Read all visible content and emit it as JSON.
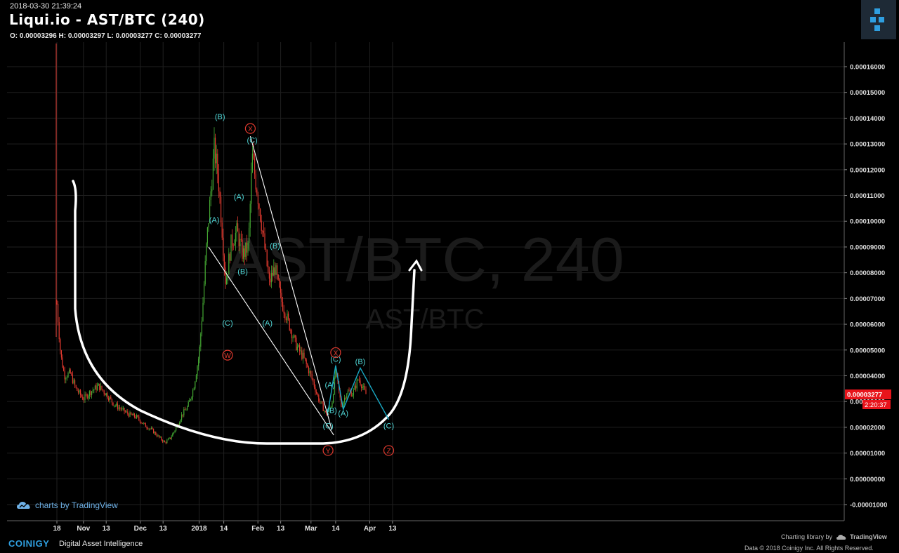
{
  "header": {
    "datetime": "2018-03-30 21:39:24",
    "title": "Liqui.io - AST/BTC (240)",
    "ohlc": "O: 0.00003296 H: 0.00003297 L: 0.00003277 C: 0.00003277"
  },
  "watermark": {
    "main": "AST/BTC, 240",
    "sub": "AST/BTC"
  },
  "footer": {
    "tv_badge": "charts by TradingView",
    "brand": "COINIGY",
    "tagline": "Digital Asset Intelligence",
    "charting_credit": "Charting library by",
    "tv_name": "TradingView",
    "data_credit": "Data © 2018 Coinigy Inc. All Rights Reserved."
  },
  "colors": {
    "up": "#44a832",
    "down": "#e23a2f",
    "wave_label": "#4fd6d6",
    "wave_circle": "#e23a2f",
    "annotation_line": "#ffffff",
    "projection": "#19a9c4",
    "price_tag": "#e8141b"
  },
  "chart_data": {
    "type": "line",
    "title": "Liqui.io - AST/BTC (240)",
    "xlabel": "",
    "ylabel": "",
    "x_ticks": [
      "18",
      "Nov",
      "13",
      "Dec",
      "13",
      "2018",
      "14",
      "Feb",
      "13",
      "Mar",
      "14",
      "Apr",
      "13"
    ],
    "y_ticks": [
      "0.00016000",
      "0.00015000",
      "0.00014000",
      "0.00013000",
      "0.00012000",
      "0.00011000",
      "0.00010000",
      "0.00009000",
      "0.00008000",
      "0.00007000",
      "0.00006000",
      "0.00005000",
      "0.00004000",
      "0.00003000",
      "0.00002000",
      "0.00001000",
      "0.00000000",
      "-0.00001000"
    ],
    "ylim": [
      -1.3e-05,
      0.000168
    ],
    "grid": true,
    "last_price": "0.00003277",
    "countdown": "2:20:37",
    "series": [
      {
        "values": [
          [
            "2017-10-18",
            6.8e-05
          ],
          [
            "2017-10-20",
            4.8e-05
          ],
          [
            "2017-10-22",
            4e-05
          ],
          [
            "2017-10-25",
            4.1e-05
          ],
          [
            "2017-10-28",
            3.5e-05
          ],
          [
            "2017-11-01",
            3.1e-05
          ],
          [
            "2017-11-05",
            3.4e-05
          ],
          [
            "2017-11-09",
            3.6e-05
          ],
          [
            "2017-11-13",
            3.3e-05
          ],
          [
            "2017-11-17",
            2.9e-05
          ],
          [
            "2017-11-21",
            2.7e-05
          ],
          [
            "2017-11-25",
            2.5e-05
          ],
          [
            "2017-11-29",
            2.4e-05
          ],
          [
            "2017-12-03",
            2.1e-05
          ],
          [
            "2017-12-07",
            1.9e-05
          ],
          [
            "2017-12-11",
            1.6e-05
          ],
          [
            "2017-12-14",
            1.4e-05
          ],
          [
            "2017-12-17",
            1.6e-05
          ],
          [
            "2017-12-20",
            2e-05
          ],
          [
            "2017-12-23",
            2.5e-05
          ],
          [
            "2017-12-26",
            2.8e-05
          ],
          [
            "2017-12-29",
            3.5e-05
          ],
          [
            "2018-01-01",
            4.8e-05
          ],
          [
            "2018-01-03",
            6.8e-05
          ],
          [
            "2018-01-05",
            9.2e-05
          ],
          [
            "2018-01-07",
            0.00011
          ],
          [
            "2018-01-09",
            0.000128
          ],
          [
            "2018-01-11",
            0.000118
          ],
          [
            "2018-01-13",
            9.8e-05
          ],
          [
            "2018-01-15",
            7.6e-05
          ],
          [
            "2018-01-18",
            9.2e-05
          ],
          [
            "2018-01-21",
            9.6e-05
          ],
          [
            "2018-01-24",
            8.7e-05
          ],
          [
            "2018-01-27",
            9e-05
          ],
          [
            "2018-01-29",
            0.000125
          ],
          [
            "2018-02-01",
            0.00011
          ],
          [
            "2018-02-04",
            9.3e-05
          ],
          [
            "2018-02-07",
            7.6e-05
          ],
          [
            "2018-02-10",
            8.2e-05
          ],
          [
            "2018-02-13",
            7e-05
          ],
          [
            "2018-02-17",
            6.1e-05
          ],
          [
            "2018-02-21",
            5.2e-05
          ],
          [
            "2018-02-25",
            4.7e-05
          ],
          [
            "2018-03-01",
            4e-05
          ],
          [
            "2018-03-05",
            3.1e-05
          ],
          [
            "2018-03-09",
            2.5e-05
          ],
          [
            "2018-03-12",
            2.9e-05
          ],
          [
            "2018-03-14",
            4.2e-05
          ],
          [
            "2018-03-17",
            2.8e-05
          ],
          [
            "2018-03-20",
            3.4e-05
          ],
          [
            "2018-03-23",
            3.3e-05
          ],
          [
            "2018-03-26",
            3.9e-05
          ],
          [
            "2018-03-28",
            3.6e-05
          ],
          [
            "2018-03-30",
            3.28e-05
          ]
        ]
      }
    ],
    "wave_labels": [
      {
        "text": "(A)",
        "date": "2018-01-09",
        "price": 9.95e-05
      },
      {
        "text": "(B)",
        "date": "2018-01-12",
        "price": 0.0001395
      },
      {
        "text": "(C)",
        "date": "2018-01-16",
        "price": 5.95e-05
      },
      {
        "text": "(A)",
        "date": "2018-01-22",
        "price": 0.0001085
      },
      {
        "text": "(B)",
        "date": "2018-01-24",
        "price": 7.95e-05
      },
      {
        "text": "(C)",
        "date": "2018-01-29",
        "price": 0.0001305
      },
      {
        "text": "(A)",
        "date": "2018-02-06",
        "price": 5.95e-05
      },
      {
        "text": "(B)",
        "date": "2018-02-10",
        "price": 8.95e-05
      },
      {
        "text": "(C)",
        "date": "2018-03-10",
        "price": 1.95e-05
      },
      {
        "text": "(B)",
        "date": "2018-03-12",
        "price": 2.55e-05
      },
      {
        "text": "(A)",
        "date": "2018-03-11",
        "price": 3.55e-05
      },
      {
        "text": "(C)",
        "date": "2018-03-14",
        "price": 4.55e-05
      },
      {
        "text": "(A)",
        "date": "2018-03-18",
        "price": 2.45e-05
      },
      {
        "text": "(B)",
        "date": "2018-03-27",
        "price": 4.45e-05
      },
      {
        "text": "(C)",
        "date": "2018-04-11",
        "price": 1.95e-05
      }
    ],
    "wave_circles": [
      {
        "text": "W",
        "date": "2018-01-16",
        "price": 4.8e-05
      },
      {
        "text": "X",
        "date": "2018-01-28",
        "price": 0.000136
      },
      {
        "text": "Y",
        "date": "2018-03-10",
        "price": 1.1e-05
      },
      {
        "text": "X",
        "date": "2018-03-14",
        "price": 4.9e-05
      },
      {
        "text": "Z",
        "date": "2018-04-11",
        "price": 1.1e-05
      }
    ],
    "trendlines": [
      {
        "from": [
          "2018-01-06",
          9e-05
        ],
        "to": [
          "2018-03-13",
          1.7e-05
        ]
      },
      {
        "from": [
          "2018-01-28",
          0.000133
        ],
        "to": [
          "2018-03-12",
          1.9e-05
        ]
      }
    ],
    "projection": [
      [
        "2018-03-10",
        2.6e-05
      ],
      [
        "2018-03-14",
        4.4e-05
      ],
      [
        "2018-03-18",
        2.7e-05
      ],
      [
        "2018-03-27",
        4.3e-05
      ],
      [
        "2018-04-11",
        2.3e-05
      ]
    ]
  }
}
